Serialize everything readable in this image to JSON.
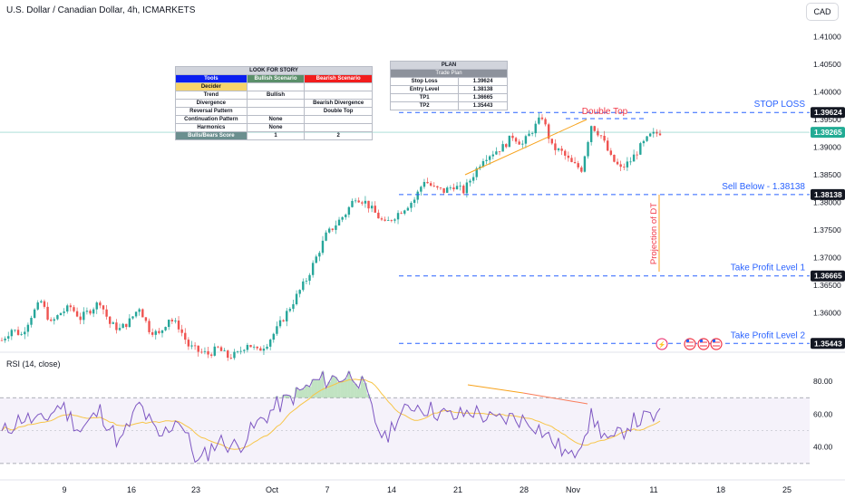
{
  "header": {
    "title": "U.S. Dollar / Canadian Dollar, 4h, ICMARKETS",
    "currency": "CAD"
  },
  "colors": {
    "up": "#26a69a",
    "down": "#ef5350",
    "dashed": "#2962ff",
    "annotation_red": "#f23645",
    "trendline": "#f7a21b",
    "rsi_line": "#7e57c2",
    "rsi_ma": "#f7c548"
  },
  "story_table": {
    "title": "LOOK FOR STORY",
    "col_tools": "Tools",
    "col_bull": "Bullish Scenario",
    "col_bear": "Bearish Scenario",
    "rows": [
      {
        "label": "Decider",
        "bull": "",
        "bear": ""
      },
      {
        "label": "Trend",
        "bull": "Bullish",
        "bear": ""
      },
      {
        "label": "Divergence",
        "bull": "",
        "bear": "Bearish Divergence"
      },
      {
        "label": "Reversal Pattern",
        "bull": "",
        "bear": "Double Top"
      },
      {
        "label": "Continuation Pattern",
        "bull": "None",
        "bear": ""
      },
      {
        "label": "Harmonics",
        "bull": "None",
        "bear": ""
      },
      {
        "label": "Bulls/Bears Score",
        "bull": "1",
        "bear": "2"
      }
    ]
  },
  "plan_table": {
    "title": "PLAN",
    "subtitle": "Trade Plan",
    "rows": [
      {
        "label": "Stop Loss",
        "value": "1.39624"
      },
      {
        "label": "Entry Level",
        "value": "1.38138"
      },
      {
        "label": "TP1",
        "value": "1.36665"
      },
      {
        "label": "TP2",
        "value": "1.35443"
      }
    ]
  },
  "annotations": {
    "double_top": "Double Top",
    "stop_loss": "STOP LOSS",
    "sell_below": "Sell Below - 1.38138",
    "tp1": "Take Profit Level 1",
    "tp2": "Take Profit Level 2",
    "projection": "Projection of DT"
  },
  "rsi": {
    "label": "RSI (14, close)",
    "upper_band": 70,
    "lower_band": 30,
    "mid": 50,
    "ticks": [
      "80.00",
      "60.00",
      "40.00"
    ]
  },
  "chart_data": {
    "type": "candlestick",
    "symbol": "USDCAD",
    "timeframe": "4h",
    "ylim": [
      1.353,
      1.4125
    ],
    "y_ticks": [
      "1.41000",
      "1.40500",
      "1.40000",
      "1.39500",
      "1.39000",
      "1.38500",
      "1.38000",
      "1.37500",
      "1.37000",
      "1.36500",
      "1.36000"
    ],
    "x_ticks": [
      "9",
      "16",
      "23",
      "Oct",
      "7",
      "14",
      "21",
      "28",
      "Nov",
      "11",
      "18",
      "25"
    ],
    "levels": [
      {
        "name": "STOP LOSS",
        "value": 1.39624,
        "label": "1.39624"
      },
      {
        "name": "Sell Below",
        "value": 1.38138,
        "label": "1.38138"
      },
      {
        "name": "Take Profit Level 1",
        "value": 1.36665,
        "label": "1.36665"
      },
      {
        "name": "Take Profit Level 2",
        "value": 1.35443,
        "label": "1.35443"
      }
    ],
    "last_price": {
      "value": 1.39265,
      "label": "1.39265"
    },
    "trend_close": [
      [
        0,
        1.355
      ],
      [
        3,
        1.357
      ],
      [
        6,
        1.356
      ],
      [
        9,
        1.3595
      ],
      [
        12,
        1.362
      ],
      [
        15,
        1.358
      ],
      [
        18,
        1.36
      ],
      [
        21,
        1.361
      ],
      [
        24,
        1.359
      ],
      [
        27,
        1.3605
      ],
      [
        30,
        1.362
      ],
      [
        33,
        1.358
      ],
      [
        36,
        1.357
      ],
      [
        39,
        1.3585
      ],
      [
        42,
        1.361
      ],
      [
        45,
        1.357
      ],
      [
        48,
        1.356
      ],
      [
        51,
        1.359
      ],
      [
        54,
        1.3575
      ],
      [
        57,
        1.354
      ],
      [
        60,
        1.353
      ],
      [
        63,
        1.3525
      ],
      [
        66,
        1.3535
      ],
      [
        69,
        1.352
      ],
      [
        72,
        1.3525
      ],
      [
        75,
        1.3545
      ],
      [
        78,
        1.353
      ],
      [
        81,
        1.3545
      ],
      [
        84,
        1.357
      ],
      [
        87,
        1.36
      ],
      [
        90,
        1.363
      ],
      [
        93,
        1.366
      ],
      [
        96,
        1.37
      ],
      [
        99,
        1.374
      ],
      [
        102,
        1.376
      ],
      [
        105,
        1.378
      ],
      [
        108,
        1.381
      ],
      [
        111,
        1.38
      ],
      [
        114,
        1.378
      ],
      [
        117,
        1.376
      ],
      [
        120,
        1.3775
      ],
      [
        123,
        1.379
      ],
      [
        126,
        1.3805
      ],
      [
        129,
        1.384
      ],
      [
        132,
        1.3825
      ],
      [
        135,
        1.382
      ],
      [
        138,
        1.383
      ],
      [
        141,
        1.382
      ],
      [
        144,
        1.385
      ],
      [
        147,
        1.388
      ],
      [
        150,
        1.389
      ],
      [
        153,
        1.39
      ],
      [
        156,
        1.392
      ],
      [
        159,
        1.3905
      ],
      [
        162,
        1.393
      ],
      [
        165,
        1.3955
      ],
      [
        168,
        1.39
      ],
      [
        171,
        1.389
      ],
      [
        174,
        1.387
      ],
      [
        177,
        1.386
      ],
      [
        180,
        1.394
      ],
      [
        183,
        1.392
      ],
      [
        186,
        1.388
      ],
      [
        189,
        1.386
      ],
      [
        192,
        1.3875
      ],
      [
        195,
        1.39
      ],
      [
        198,
        1.392
      ],
      [
        201,
        1.3927
      ]
    ],
    "rsi_values": [
      [
        0,
        48
      ],
      [
        6,
        58
      ],
      [
        12,
        55
      ],
      [
        18,
        66
      ],
      [
        24,
        50
      ],
      [
        30,
        62
      ],
      [
        36,
        42
      ],
      [
        42,
        66
      ],
      [
        48,
        45
      ],
      [
        54,
        58
      ],
      [
        60,
        30
      ],
      [
        66,
        44
      ],
      [
        72,
        40
      ],
      [
        78,
        54
      ],
      [
        84,
        65
      ],
      [
        90,
        72
      ],
      [
        96,
        80
      ],
      [
        102,
        82
      ],
      [
        108,
        84
      ],
      [
        111,
        74
      ],
      [
        114,
        56
      ],
      [
        117,
        44
      ],
      [
        120,
        56
      ],
      [
        126,
        66
      ],
      [
        132,
        62
      ],
      [
        138,
        58
      ],
      [
        144,
        62
      ],
      [
        150,
        56
      ],
      [
        156,
        58
      ],
      [
        162,
        55
      ],
      [
        168,
        44
      ],
      [
        174,
        33
      ],
      [
        180,
        58
      ],
      [
        186,
        42
      ],
      [
        192,
        55
      ],
      [
        198,
        58
      ]
    ]
  }
}
